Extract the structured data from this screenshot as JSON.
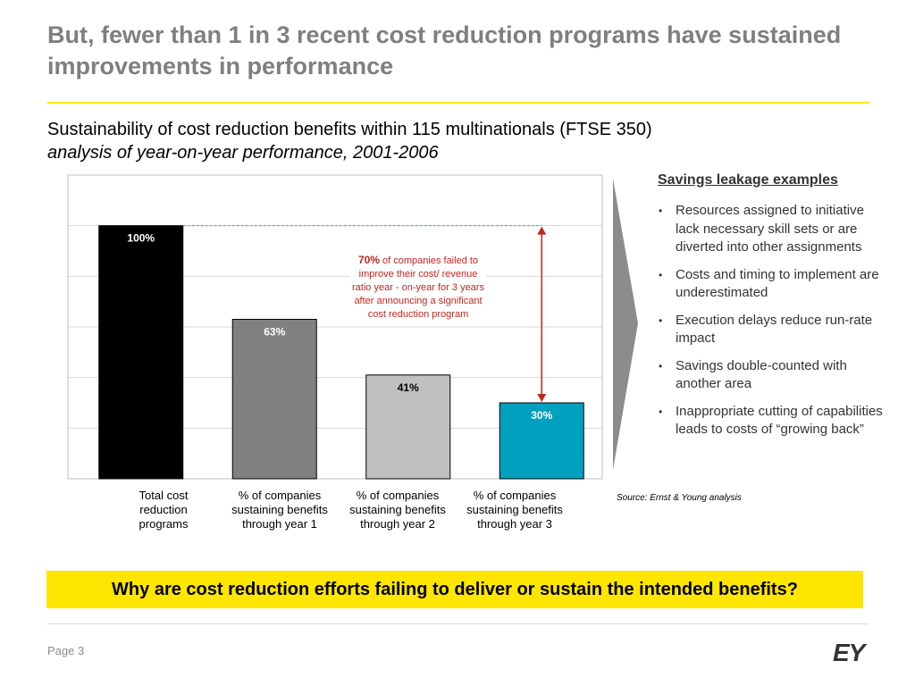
{
  "slide": {
    "title": "But, fewer than 1 in 3 recent cost reduction programs have sustained improvements in performance",
    "subtitle": "Sustainability of cost reduction benefits within 115 multinationals (FTSE 350)",
    "subtitle_italic": "analysis of year-on-year performance, 2001-2006",
    "accent_color": "#ffe600"
  },
  "chart_data": {
    "type": "bar",
    "categories": [
      "Total cost reduction programs",
      "% of companies sustaining benefits through year 1",
      "% of companies sustaining benefits through year 2",
      "% of companies sustaining benefits through year 3"
    ],
    "values": [
      100,
      63,
      41,
      30
    ],
    "data_labels": [
      "100%",
      "63%",
      "41%",
      "30%"
    ],
    "bar_colors": [
      "#000000",
      "#808080",
      "#c0c0c0",
      "#00a0bf"
    ],
    "label_colors": [
      "#ffffff",
      "#ffffff",
      "#000000",
      "#ffffff"
    ],
    "ylim": [
      0,
      120
    ],
    "grid": true,
    "annotation": {
      "highlight": "70%",
      "text": "of companies failed to improve their cost/ revenue ratio year - on-year for 3 years after announcing a significant cost reduction program",
      "color": "#c0261f"
    }
  },
  "sidebar": {
    "heading": "Savings leakage examples",
    "items": [
      "Resources assigned to initiative lack necessary skill sets  or are diverted into other assignments",
      "Costs and timing to implement are underestimated",
      "Execution delays reduce run-rate impact",
      "Savings double-counted with another area",
      "Inappropriate cutting of capabilities leads to costs of “growing back”"
    ],
    "source": "Source: Ernst & Young analysis"
  },
  "banner": {
    "text": "Why are cost reduction efforts failing to deliver or sustain the intended benefits?"
  },
  "footer": {
    "page": "Page 3",
    "logo": "EY"
  }
}
